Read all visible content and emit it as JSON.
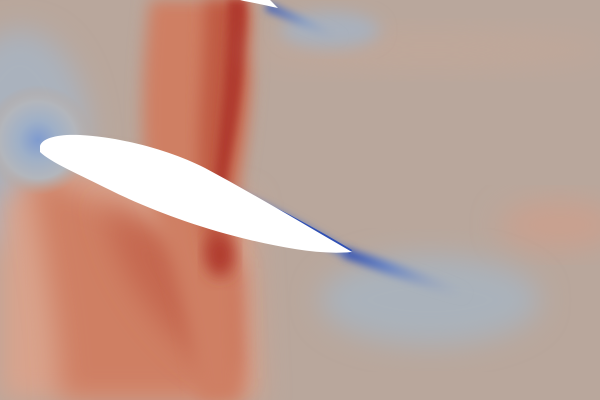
{
  "figure": {
    "kind": "cfd-contour-plot",
    "field_colormap": "cool-to-warm",
    "colors": {
      "freestream": "#b9a79c",
      "warm_light": "#d9a38c",
      "warm_mid": "#cf7f63",
      "warm_strong": "#bf5a43",
      "warm_peak": "#b03a2e",
      "cool_light": "#aab6c4",
      "cool_mid": "#8ea4c4",
      "cool_strong": "#5a77c0",
      "cool_peak": "#2f4fb3",
      "body": "#ffffff"
    },
    "bodies": [
      {
        "name": "main-airfoil",
        "icon": "airfoil-shape"
      },
      {
        "name": "upper-airfoil-trailing-edge",
        "icon": "airfoil-shape"
      }
    ],
    "features": [
      "leading-edge-stagnation-region",
      "suction-side-low-pressure-sheet",
      "wake-streak",
      "upper-wake-streak",
      "high-pressure-lobe"
    ]
  }
}
